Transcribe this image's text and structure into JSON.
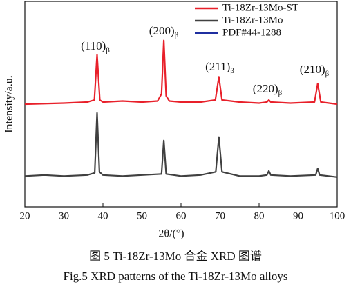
{
  "chart_data": {
    "type": "line",
    "xlabel": "2θ/(°)",
    "ylabel": "Intensity/a.u.",
    "xlim": [
      20,
      100
    ],
    "xticks": [
      20,
      30,
      40,
      50,
      60,
      70,
      80,
      90,
      100
    ],
    "ylim": [
      0,
      100
    ],
    "series": [
      {
        "name": "Ti-18Zr-13Mo-ST",
        "color": "#e8202a",
        "x": [
          20,
          30,
          36,
          37.8,
          38.5,
          39.2,
          40,
          45,
          50,
          54,
          55,
          55.6,
          56.2,
          57,
          60,
          65,
          68.8,
          69.7,
          70.5,
          75,
          80,
          82,
          82.5,
          83,
          88,
          94.2,
          95,
          95.8,
          100
        ],
        "values": [
          50,
          50.5,
          51,
          52,
          74,
          52,
          51,
          51.5,
          51,
          51.5,
          55,
          81,
          54,
          51.5,
          51,
          51,
          52,
          63.3,
          52,
          51,
          50.5,
          51,
          52,
          51,
          50.5,
          51,
          60,
          51,
          50
        ]
      },
      {
        "name": "Ti-18Zr-13Mo",
        "color": "#404040",
        "x": [
          20,
          25,
          30,
          36,
          37.9,
          38.5,
          39.1,
          40,
          45,
          50,
          55,
          55.6,
          56.2,
          60,
          65,
          68.9,
          69.7,
          70.5,
          75,
          80,
          82,
          82.5,
          83,
          88,
          94.5,
          95,
          95.5,
          100
        ],
        "values": [
          15,
          15.5,
          15,
          15.5,
          16.5,
          45.7,
          17,
          15.5,
          15,
          15.5,
          16,
          32.3,
          16,
          15,
          15.5,
          17,
          34,
          17,
          15,
          15,
          15.5,
          17.5,
          15.5,
          15,
          15.5,
          18.7,
          15.5,
          14.5
        ]
      },
      {
        "name": "PDF#44-1288",
        "color": "#1f2fa0",
        "x": [],
        "values": []
      }
    ],
    "annotations": [
      {
        "text": "(110)",
        "sub": "β"
      },
      {
        "text": "(200)",
        "sub": "β"
      },
      {
        "text": "(211)",
        "sub": "β"
      },
      {
        "text": "(220)",
        "sub": "β"
      },
      {
        "text": "(210)",
        "sub": "β"
      }
    ],
    "caption_cn": "图 5  Ti-18Zr-13Mo 合金 XRD 图谱",
    "caption_en": "Fig.5  XRD patterns of the Ti-18Zr-13Mo alloys"
  }
}
